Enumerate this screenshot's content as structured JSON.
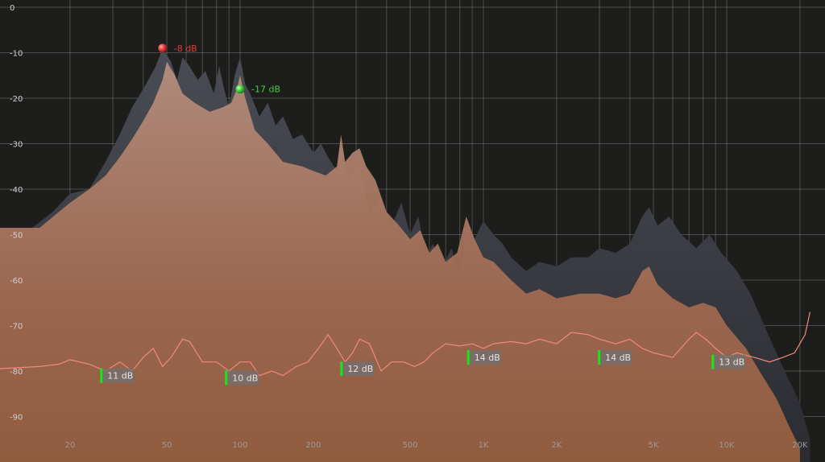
{
  "chart_data": {
    "type": "area",
    "title": "",
    "xlabel": "",
    "ylabel": "",
    "x_scale": "log",
    "xlim": [
      10,
      22000
    ],
    "ylim": [
      -97,
      0
    ],
    "grid": true,
    "y_ticks": [
      {
        "value": 0,
        "label": "0"
      },
      {
        "value": -10,
        "label": "-10"
      },
      {
        "value": -20,
        "label": "-20"
      },
      {
        "value": -30,
        "label": "-30"
      },
      {
        "value": -40,
        "label": "-40"
      },
      {
        "value": -50,
        "label": "-50"
      },
      {
        "value": -60,
        "label": "-60"
      },
      {
        "value": -70,
        "label": "-70"
      },
      {
        "value": -80,
        "label": "-80"
      },
      {
        "value": -90,
        "label": "-90"
      }
    ],
    "x_ticks": [
      {
        "value": 20,
        "label": "20"
      },
      {
        "value": 50,
        "label": "50"
      },
      {
        "value": 100,
        "label": "100"
      },
      {
        "value": 200,
        "label": "200"
      },
      {
        "value": 500,
        "label": "500"
      },
      {
        "value": 1000,
        "label": "1K"
      },
      {
        "value": 2000,
        "label": "2K"
      },
      {
        "value": 5000,
        "label": "5K"
      },
      {
        "value": 10000,
        "label": "10K"
      },
      {
        "value": 20000,
        "label": "20K"
      }
    ],
    "series": [
      {
        "color": "#6b6c73",
        "points": [
          [
            10,
            -48.5
          ],
          [
            14,
            -48.5
          ],
          [
            17,
            -45
          ],
          [
            20,
            -41
          ],
          [
            24,
            -40
          ],
          [
            28,
            -34
          ],
          [
            32,
            -28
          ],
          [
            36,
            -22
          ],
          [
            40,
            -18
          ],
          [
            45,
            -13
          ],
          [
            48,
            -9
          ],
          [
            52,
            -12
          ],
          [
            55,
            -16
          ],
          [
            58,
            -11
          ],
          [
            62,
            -13
          ],
          [
            67,
            -16
          ],
          [
            72,
            -14
          ],
          [
            78,
            -19
          ],
          [
            82,
            -13
          ],
          [
            86,
            -18
          ],
          [
            90,
            -22
          ],
          [
            95,
            -15
          ],
          [
            100,
            -11
          ],
          [
            105,
            -17
          ],
          [
            110,
            -19
          ],
          [
            120,
            -24
          ],
          [
            130,
            -21
          ],
          [
            140,
            -26
          ],
          [
            150,
            -24
          ],
          [
            165,
            -29
          ],
          [
            180,
            -28
          ],
          [
            200,
            -32
          ],
          [
            215,
            -30
          ],
          [
            230,
            -33
          ],
          [
            250,
            -36
          ],
          [
            260,
            -30
          ],
          [
            280,
            -38
          ],
          [
            310,
            -35
          ],
          [
            340,
            -45
          ],
          [
            380,
            -42
          ],
          [
            420,
            -48
          ],
          [
            460,
            -43
          ],
          [
            500,
            -50
          ],
          [
            540,
            -46
          ],
          [
            580,
            -55
          ],
          [
            620,
            -52
          ],
          [
            680,
            -57
          ],
          [
            740,
            -53
          ],
          [
            800,
            -60
          ],
          [
            850,
            -48
          ],
          [
            900,
            -52
          ],
          [
            1000,
            -47
          ],
          [
            1100,
            -50
          ],
          [
            1200,
            -52
          ],
          [
            1300,
            -55
          ],
          [
            1500,
            -58
          ],
          [
            1700,
            -56
          ],
          [
            2000,
            -57
          ],
          [
            2300,
            -55
          ],
          [
            2700,
            -55
          ],
          [
            3000,
            -53
          ],
          [
            3500,
            -54
          ],
          [
            4000,
            -52
          ],
          [
            4500,
            -46
          ],
          [
            4800,
            -44
          ],
          [
            5200,
            -48
          ],
          [
            5800,
            -46
          ],
          [
            6500,
            -50
          ],
          [
            7500,
            -53
          ],
          [
            8500,
            -50
          ],
          [
            9500,
            -54
          ],
          [
            11000,
            -58
          ],
          [
            12500,
            -63
          ],
          [
            14000,
            -69
          ],
          [
            16000,
            -76
          ],
          [
            18000,
            -82
          ],
          [
            20000,
            -87
          ],
          [
            22000,
            -95
          ]
        ]
      },
      {
        "color": "#a4705c",
        "points": [
          [
            10,
            -48.5
          ],
          [
            15,
            -48.5
          ],
          [
            18,
            -45
          ],
          [
            20,
            -43
          ],
          [
            24,
            -40
          ],
          [
            28,
            -37
          ],
          [
            32,
            -33
          ],
          [
            36,
            -29
          ],
          [
            40,
            -25
          ],
          [
            44,
            -21
          ],
          [
            48,
            -16
          ],
          [
            50,
            -12
          ],
          [
            54,
            -15
          ],
          [
            58,
            -19
          ],
          [
            65,
            -21
          ],
          [
            75,
            -23
          ],
          [
            85,
            -22
          ],
          [
            92,
            -21
          ],
          [
            97,
            -18
          ],
          [
            100,
            -15
          ],
          [
            105,
            -20
          ],
          [
            115,
            -27
          ],
          [
            130,
            -30
          ],
          [
            150,
            -34
          ],
          [
            180,
            -35
          ],
          [
            200,
            -36
          ],
          [
            225,
            -37
          ],
          [
            250,
            -35
          ],
          [
            260,
            -28
          ],
          [
            270,
            -34
          ],
          [
            290,
            -32
          ],
          [
            310,
            -31
          ],
          [
            330,
            -35
          ],
          [
            360,
            -38
          ],
          [
            400,
            -45
          ],
          [
            450,
            -48
          ],
          [
            500,
            -51
          ],
          [
            550,
            -49
          ],
          [
            600,
            -54
          ],
          [
            650,
            -52
          ],
          [
            700,
            -56
          ],
          [
            780,
            -54
          ],
          [
            850,
            -46
          ],
          [
            920,
            -51
          ],
          [
            1000,
            -55
          ],
          [
            1100,
            -56
          ],
          [
            1300,
            -60
          ],
          [
            1500,
            -63
          ],
          [
            1700,
            -62
          ],
          [
            2000,
            -64
          ],
          [
            2500,
            -63
          ],
          [
            3000,
            -63
          ],
          [
            3500,
            -64
          ],
          [
            4000,
            -63
          ],
          [
            4500,
            -58
          ],
          [
            4800,
            -57
          ],
          [
            5200,
            -61
          ],
          [
            6000,
            -64
          ],
          [
            7000,
            -66
          ],
          [
            8000,
            -65
          ],
          [
            9000,
            -66
          ],
          [
            10000,
            -70
          ],
          [
            12000,
            -75
          ],
          [
            14000,
            -81
          ],
          [
            16000,
            -86
          ],
          [
            18000,
            -92
          ],
          [
            20000,
            -97
          ]
        ]
      },
      {
        "color": "#f08a7a",
        "points": [
          [
            10,
            -79.5
          ],
          [
            15,
            -79
          ],
          [
            18,
            -78.5
          ],
          [
            20,
            -77.5
          ],
          [
            24,
            -78.5
          ],
          [
            28,
            -80
          ],
          [
            32,
            -78
          ],
          [
            36,
            -80
          ],
          [
            40,
            -77
          ],
          [
            44,
            -75
          ],
          [
            48,
            -79
          ],
          [
            52,
            -77
          ],
          [
            58,
            -73
          ],
          [
            62,
            -73.5
          ],
          [
            70,
            -78
          ],
          [
            80,
            -78
          ],
          [
            90,
            -80
          ],
          [
            100,
            -78
          ],
          [
            110,
            -78
          ],
          [
            120,
            -81
          ],
          [
            135,
            -80
          ],
          [
            150,
            -81
          ],
          [
            170,
            -79
          ],
          [
            190,
            -78
          ],
          [
            210,
            -75
          ],
          [
            230,
            -72
          ],
          [
            250,
            -75
          ],
          [
            270,
            -78
          ],
          [
            290,
            -76
          ],
          [
            310,
            -73
          ],
          [
            340,
            -74
          ],
          [
            380,
            -80
          ],
          [
            420,
            -78
          ],
          [
            470,
            -78
          ],
          [
            520,
            -79
          ],
          [
            570,
            -78
          ],
          [
            620,
            -76
          ],
          [
            700,
            -74
          ],
          [
            800,
            -74.5
          ],
          [
            900,
            -74
          ],
          [
            1000,
            -75
          ],
          [
            1100,
            -74
          ],
          [
            1300,
            -73.5
          ],
          [
            1500,
            -74
          ],
          [
            1700,
            -73
          ],
          [
            2000,
            -74
          ],
          [
            2300,
            -71.5
          ],
          [
            2700,
            -72
          ],
          [
            3000,
            -73
          ],
          [
            3500,
            -74
          ],
          [
            4000,
            -73
          ],
          [
            4500,
            -75
          ],
          [
            5000,
            -76
          ],
          [
            6000,
            -77
          ],
          [
            7000,
            -73
          ],
          [
            7500,
            -71.5
          ],
          [
            8200,
            -73
          ],
          [
            9000,
            -75
          ],
          [
            10000,
            -77
          ],
          [
            11000,
            -76
          ],
          [
            13000,
            -77
          ],
          [
            15000,
            -78
          ],
          [
            17000,
            -77
          ],
          [
            19000,
            -76
          ],
          [
            21000,
            -72
          ],
          [
            22000,
            -67
          ]
        ]
      }
    ],
    "peaks": [
      {
        "freq": 48,
        "db": -9,
        "label": "-8 dB",
        "color": "#e03a3a"
      },
      {
        "freq": 100,
        "db": -18,
        "label": "-17 dB",
        "color": "#3fd13f"
      }
    ],
    "badges": [
      {
        "freq": 27,
        "db": -81,
        "label": "11 dB"
      },
      {
        "freq": 88,
        "db": -81.5,
        "label": "10 dB"
      },
      {
        "freq": 262,
        "db": -79.5,
        "label": "12 dB"
      },
      {
        "freq": 870,
        "db": -77,
        "label": "14 dB"
      },
      {
        "freq": 3000,
        "db": -77,
        "label": "14 dB"
      },
      {
        "freq": 8800,
        "db": -78,
        "label": "13 dB"
      }
    ]
  }
}
